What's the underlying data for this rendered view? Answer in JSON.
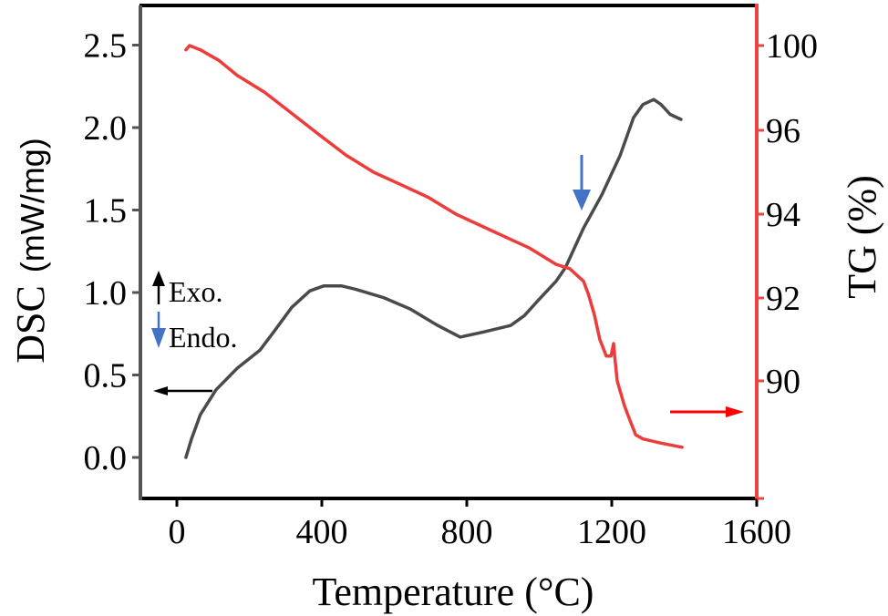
{
  "chart_data": {
    "type": "line",
    "title": "",
    "xlabel": "Temperature (°C)",
    "ylabel_left": {
      "main": "DSC",
      "unit": "(mW/mg)"
    },
    "ylabel_right": "TG (%)",
    "xlim": [
      -100,
      1600
    ],
    "ylim_left": [
      -0.25,
      2.75
    ],
    "x_ticks": [
      0,
      400,
      800,
      1200,
      1600
    ],
    "x_tick_labels": [
      "0",
      "400",
      "800",
      "1200",
      "1600"
    ],
    "y_left_ticks": [
      0.0,
      0.5,
      1.0,
      1.5,
      2.0,
      2.5
    ],
    "y_left_tick_labels": [
      "0.0",
      "0.5",
      "1.0",
      "1.5",
      "2.0",
      "2.5"
    ],
    "y_right_tick_labels": [
      "100",
      "96",
      "94",
      "92",
      "90"
    ],
    "y_right_tick_values": [
      100,
      96,
      94,
      92,
      90
    ],
    "grid": false,
    "colors": {
      "dsc": "#4a4a4a",
      "tg": "#ee3b3b",
      "left_axis": "#555555",
      "right_axis": "#ee4444",
      "endo_arrow": "#4472c4",
      "frame": "#000000"
    },
    "series": [
      {
        "name": "DSC",
        "axis": "left",
        "x": [
          25,
          40,
          65,
          108,
          166,
          229,
          267,
          317,
          367,
          405,
          455,
          493,
          569,
          644,
          720,
          782,
          845,
          921,
          959,
          996,
          1047,
          1072,
          1122,
          1172,
          1223,
          1260,
          1286,
          1316,
          1336,
          1361,
          1391
        ],
        "y": [
          0.0,
          0.11,
          0.26,
          0.41,
          0.54,
          0.65,
          0.76,
          0.91,
          1.01,
          1.04,
          1.04,
          1.02,
          0.97,
          0.9,
          0.8,
          0.73,
          0.76,
          0.8,
          0.86,
          0.95,
          1.07,
          1.15,
          1.39,
          1.59,
          1.83,
          2.06,
          2.14,
          2.17,
          2.14,
          2.08,
          2.05
        ]
      },
      {
        "name": "TG",
        "axis": "right",
        "x": [
          25,
          35,
          65,
          116,
          166,
          242,
          317,
          392,
          468,
          543,
          619,
          694,
          770,
          870,
          971,
          1047,
          1084,
          1122,
          1135,
          1152,
          1167,
          1185,
          1198,
          1205,
          1208,
          1215,
          1235,
          1248,
          1266,
          1286,
          1336,
          1394
        ],
        "y": [
          99.8,
          100.0,
          99.8,
          99.3,
          98.6,
          97.8,
          96.8,
          95.9,
          95.4,
          95.0,
          94.7,
          94.4,
          94.0,
          93.6,
          93.2,
          92.8,
          92.7,
          92.4,
          92.1,
          91.6,
          91.0,
          90.6,
          90.6,
          90.9,
          90.6,
          90.0,
          89.4,
          89.1,
          88.7,
          88.6,
          88.5,
          88.4
        ]
      }
    ],
    "annotations": {
      "exo_label": "Exo.",
      "endo_label": "Endo.",
      "dsc_axis_pointer": "left arrow pointing to DSC axis",
      "tg_axis_pointer": "right arrow pointing to TG axis",
      "endo_marker_temperature": 1120
    }
  }
}
